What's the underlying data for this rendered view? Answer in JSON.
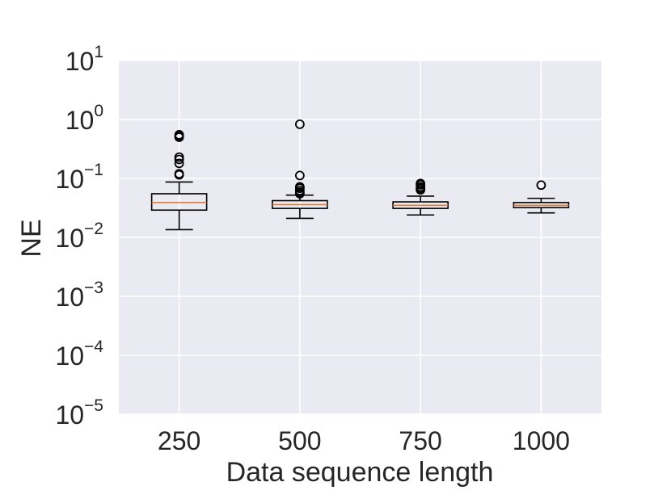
{
  "chart_data": {
    "type": "boxplot",
    "xlabel": "Data sequence length",
    "ylabel": "NE",
    "yscale": "log",
    "ylim": [
      1e-05,
      10
    ],
    "yticks": [
      {
        "value": 1e-05,
        "base": "10",
        "exp": "−5"
      },
      {
        "value": 0.0001,
        "base": "10",
        "exp": "−4"
      },
      {
        "value": 0.001,
        "base": "10",
        "exp": "−3"
      },
      {
        "value": 0.01,
        "base": "10",
        "exp": "−2"
      },
      {
        "value": 0.1,
        "base": "10",
        "exp": "−1"
      },
      {
        "value": 1,
        "base": "10",
        "exp": "0"
      },
      {
        "value": 10,
        "base": "10",
        "exp": "1"
      }
    ],
    "categories": [
      "250",
      "500",
      "750",
      "1000"
    ],
    "boxes": [
      {
        "category": "250",
        "whisker_low": 0.0135,
        "q1": 0.029,
        "median": 0.039,
        "q3": 0.055,
        "whisker_high": 0.087,
        "outliers": [
          0.115,
          0.12,
          0.18,
          0.21,
          0.23,
          0.5,
          0.52,
          0.55
        ]
      },
      {
        "category": "500",
        "whisker_low": 0.021,
        "q1": 0.031,
        "median": 0.036,
        "q3": 0.042,
        "whisker_high": 0.052,
        "outliers": [
          0.055,
          0.058,
          0.062,
          0.068,
          0.072,
          0.112,
          0.83
        ]
      },
      {
        "category": "750",
        "whisker_low": 0.024,
        "q1": 0.031,
        "median": 0.035,
        "q3": 0.04,
        "whisker_high": 0.05,
        "outliers": [
          0.064,
          0.068,
          0.072,
          0.078,
          0.082
        ]
      },
      {
        "category": "1000",
        "whisker_low": 0.026,
        "q1": 0.032,
        "median": 0.035,
        "q3": 0.039,
        "whisker_high": 0.046,
        "outliers": [
          0.077
        ]
      }
    ],
    "grid": true,
    "colors": {
      "background": "#eaeaf2",
      "grid": "#ffffff",
      "box": "#000000",
      "median": "#e07b39",
      "text": "#262626"
    }
  }
}
